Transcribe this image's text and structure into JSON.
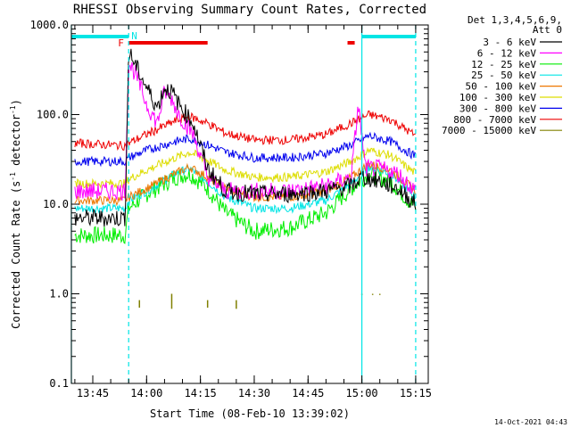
{
  "chart_data": {
    "type": "line",
    "title": "RHESSI Observing Summary Count Rates, Corrected",
    "xlabel": "Start Time (08-Feb-10 13:39:02)",
    "ylabel_main": "Corrected Count Rate (s",
    "ylabel_sup1": "-1",
    "ylabel_mid": " detector",
    "ylabel_sup2": "-1",
    "ylabel_end": ")",
    "yscale": "log",
    "ylim": [
      0.1,
      1000
    ],
    "xlim": [
      "13:39:02",
      "15:18:30"
    ],
    "ytick_labels": [
      "0.1",
      "1.0",
      "10.0",
      "100.0",
      "1000.0"
    ],
    "xtick_labels": [
      "13:45",
      "14:00",
      "14:15",
      "14:30",
      "14:45",
      "15:00",
      "15:15"
    ],
    "legend_header": [
      "Det 1,3,4,5,6,9,",
      "Att 0"
    ],
    "legend_placement": "right",
    "series": [
      {
        "name": "3 - 6 keV",
        "color": "#000000",
        "x": [
          "13:40",
          "13:54",
          "13:55",
          "13:57",
          "14:00",
          "14:03",
          "14:05",
          "14:07",
          "14:09",
          "14:13",
          "14:17",
          "14:22",
          "14:30",
          "14:40",
          "14:50",
          "14:57",
          "15:00",
          "15:05",
          "15:10",
          "15:15"
        ],
        "y": [
          7,
          7,
          500,
          350,
          200,
          120,
          200,
          180,
          130,
          80,
          25,
          14,
          13,
          13,
          14,
          16,
          20,
          18,
          15,
          10
        ]
      },
      {
        "name": "6 - 12 keV",
        "color": "#ff00ff",
        "x": [
          "13:40",
          "13:54",
          "13:55",
          "13:57",
          "14:00",
          "14:03",
          "14:05",
          "14:07",
          "14:09",
          "14:13",
          "14:17",
          "14:22",
          "14:30",
          "14:40",
          "14:50",
          "14:57",
          "14:59",
          "15:01",
          "15:05",
          "15:10",
          "15:15"
        ],
        "y": [
          14,
          14,
          380,
          280,
          130,
          80,
          180,
          150,
          100,
          60,
          20,
          14,
          14,
          14,
          16,
          20,
          130,
          25,
          25,
          22,
          14
        ]
      },
      {
        "name": "12 - 25 keV",
        "color": "#00ee00",
        "x": [
          "13:40",
          "13:54",
          "13:55",
          "14:00",
          "14:08",
          "14:12",
          "14:17",
          "14:22",
          "14:30",
          "14:40",
          "14:50",
          "14:57",
          "15:02",
          "15:08",
          "15:15"
        ],
        "y": [
          4.5,
          4.5,
          9,
          13,
          20,
          22,
          15,
          8,
          5,
          5.5,
          8,
          15,
          22,
          18,
          9
        ]
      },
      {
        "name": "25 - 50 keV",
        "color": "#00e5e5",
        "x": [
          "13:40",
          "13:54",
          "13:55",
          "14:00",
          "14:08",
          "14:12",
          "14:17",
          "14:22",
          "14:30",
          "14:40",
          "14:50",
          "14:57",
          "15:02",
          "15:08",
          "15:15"
        ],
        "y": [
          9,
          9,
          11,
          14,
          22,
          25,
          18,
          12,
          9,
          9,
          11,
          17,
          26,
          22,
          12
        ]
      },
      {
        "name": "50 - 100 keV",
        "color": "#ee7700",
        "x": [
          "13:40",
          "13:54",
          "13:55",
          "14:00",
          "14:08",
          "14:12",
          "14:17",
          "14:22",
          "14:30",
          "14:40",
          "14:50",
          "14:57",
          "15:02",
          "15:08",
          "15:15"
        ],
        "y": [
          11,
          11,
          12,
          15,
          22,
          26,
          20,
          15,
          12,
          12,
          14,
          20,
          28,
          24,
          14
        ]
      },
      {
        "name": "100 - 300 keV",
        "color": "#dddd00",
        "x": [
          "13:40",
          "13:54",
          "13:55",
          "14:00",
          "14:08",
          "14:12",
          "14:17",
          "14:22",
          "14:30",
          "14:40",
          "14:50",
          "14:57",
          "15:02",
          "15:08",
          "15:15"
        ],
        "y": [
          17,
          17,
          19,
          24,
          33,
          38,
          31,
          24,
          20,
          20,
          23,
          30,
          40,
          35,
          22
        ]
      },
      {
        "name": "300 - 800 keV",
        "color": "#0000ee",
        "x": [
          "13:40",
          "13:54",
          "13:55",
          "14:00",
          "14:08",
          "14:12",
          "14:17",
          "14:22",
          "14:30",
          "14:40",
          "14:50",
          "14:57",
          "15:02",
          "15:08",
          "15:15"
        ],
        "y": [
          30,
          30,
          33,
          40,
          50,
          54,
          46,
          38,
          33,
          33,
          37,
          46,
          58,
          50,
          34
        ]
      },
      {
        "name": "800 - 7000 keV",
        "color": "#ee0000",
        "x": [
          "13:40",
          "13:54",
          "13:55",
          "14:00",
          "14:08",
          "14:12",
          "14:17",
          "14:22",
          "14:30",
          "14:40",
          "14:50",
          "14:57",
          "15:02",
          "15:08",
          "15:15"
        ],
        "y": [
          48,
          45,
          48,
          60,
          85,
          95,
          80,
          62,
          52,
          52,
          60,
          80,
          100,
          88,
          58
        ]
      },
      {
        "name": "7000 - 15000 keV",
        "color": "#808000",
        "x": [],
        "y": []
      }
    ],
    "olive_ticks": [
      {
        "x": "13:58",
        "y_top": 0.85,
        "y_bottom": 0.7
      },
      {
        "x": "14:07",
        "y_top": 1.0,
        "y_bottom": 0.68
      },
      {
        "x": "14:17",
        "y_top": 0.85,
        "y_bottom": 0.7
      },
      {
        "x": "14:25",
        "y_top": 0.85,
        "y_bottom": 0.68
      },
      {
        "x": "15:00",
        "y_top": 1.0,
        "y_bottom": 0.97
      },
      {
        "x": "15:03",
        "y_top": 1.0,
        "y_bottom": 0.97
      },
      {
        "x": "15:05",
        "y_top": 1.0,
        "y_bottom": 0.97
      }
    ],
    "markers": {
      "night_label": "N",
      "flare_label": "F",
      "night_color": "#00e5e5",
      "flare_color": "#ee0000",
      "night_bars": [
        [
          "13:39:02",
          "13:55"
        ],
        [
          "15:00",
          "15:15"
        ]
      ],
      "flare_bars": [
        [
          "13:55",
          "14:17"
        ],
        [
          "14:56",
          "14:58"
        ]
      ],
      "vlines_solid": [
        "13:39:02",
        "15:00"
      ],
      "vlines_dashed": [
        "13:55",
        "15:15"
      ]
    },
    "grid": false
  },
  "footer_timestamp": "14-Oct-2021 04:43"
}
